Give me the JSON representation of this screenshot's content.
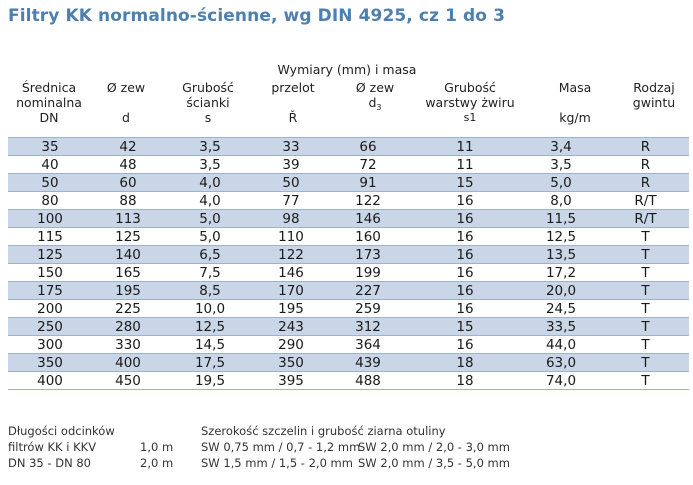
{
  "title": "Filtry KK normalno-ścienne, wg DIN 4925, cz 1 do 3",
  "headers": {
    "group_label": "Wymiary (mm) i masa",
    "col1": [
      "Średnica",
      "nominalna",
      "DN"
    ],
    "col2": [
      "Ø zew",
      "d"
    ],
    "col3": [
      "Grubość",
      "ścianki",
      "s"
    ],
    "col4": [
      "przelot",
      "Ř"
    ],
    "col5": [
      "Ø zew",
      "d",
      "3"
    ],
    "col6": [
      "Grubość",
      "warstwy żwiru",
      "s1"
    ],
    "col7": [
      "Masa",
      "kg/m"
    ],
    "col8": [
      "Rodzaj",
      "gwintu"
    ]
  },
  "rows": [
    [
      "35",
      "42",
      "3,5",
      "33",
      "66",
      "11",
      "3,4",
      "R"
    ],
    [
      "40",
      "48",
      "3,5",
      "39",
      "72",
      "11",
      "3,5",
      "R"
    ],
    [
      "50",
      "60",
      "4,0",
      "50",
      "91",
      "15",
      "5,0",
      "R"
    ],
    [
      "80",
      "88",
      "4,0",
      "77",
      "122",
      "16",
      "8,0",
      "R/T"
    ],
    [
      "100",
      "113",
      "5,0",
      "98",
      "146",
      "16",
      "11,5",
      "R/T"
    ],
    [
      "115",
      "125",
      "5,0",
      "110",
      "160",
      "16",
      "12,5",
      "T"
    ],
    [
      "125",
      "140",
      "6,5",
      "122",
      "173",
      "16",
      "13,5",
      "T"
    ],
    [
      "150",
      "165",
      "7,5",
      "146",
      "199",
      "16",
      "17,2",
      "T"
    ],
    [
      "175",
      "195",
      "8,5",
      "170",
      "227",
      "16",
      "20,0",
      "T"
    ],
    [
      "200",
      "225",
      "10,0",
      "195",
      "259",
      "16",
      "24,5",
      "T"
    ],
    [
      "250",
      "280",
      "12,5",
      "243",
      "312",
      "15",
      "33,5",
      "T"
    ],
    [
      "300",
      "330",
      "14,5",
      "290",
      "364",
      "16",
      "44,0",
      "T"
    ],
    [
      "350",
      "400",
      "17,5",
      "350",
      "439",
      "18",
      "63,0",
      "T"
    ],
    [
      "400",
      "450",
      "19,5",
      "395",
      "488",
      "18",
      "74,0",
      "T"
    ]
  ],
  "colors": {
    "title": "#4d7fb0",
    "row_shade": "#c9d6e8",
    "row_plain": "#ffffff",
    "rule": "#9fb2c8"
  },
  "footer": {
    "left_line1": "Długości odcinków",
    "left_line2": "filtrów KK i KKV",
    "left_line3": "DN 35 - DN 80",
    "length1": "1,0 m",
    "length2": "2,0 m",
    "right_heading": "Szerokość szczelin i grubość ziarna otuliny",
    "sw_row1_a": "SW 0,75 mm / 0,7 - 1,2 mm",
    "sw_row1_b": "SW 2,0 mm / 2,0 - 3,0 mm",
    "sw_row2_a": "SW 1,5 mm / 1,5 - 2,0 mm",
    "sw_row2_b": "SW 2,0 mm / 3,5 - 5,0 mm"
  }
}
